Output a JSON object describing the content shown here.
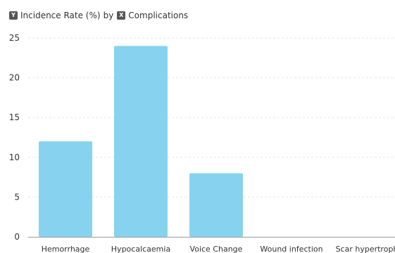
{
  "header": {
    "y_badge": "Y",
    "y_field": "Incidence Rate (%)",
    "by_word": "by",
    "x_badge": "X",
    "x_field": "Complications"
  },
  "chart_data": {
    "type": "bar",
    "categories": [
      "Hemorrhage",
      "Hypocalcaemia",
      "Voice Change",
      "Wound infection",
      "Scar hypertroph"
    ],
    "values": [
      12,
      24,
      8,
      0,
      0
    ],
    "ylabel": "Incidence Rate (%)",
    "xlabel": "Complications",
    "ylim": [
      0,
      25
    ],
    "yticks": [
      0,
      5,
      10,
      15,
      20,
      25
    ],
    "grid": true,
    "bar_color": "#87d3ef",
    "grid_color": "#e6e6e6"
  }
}
